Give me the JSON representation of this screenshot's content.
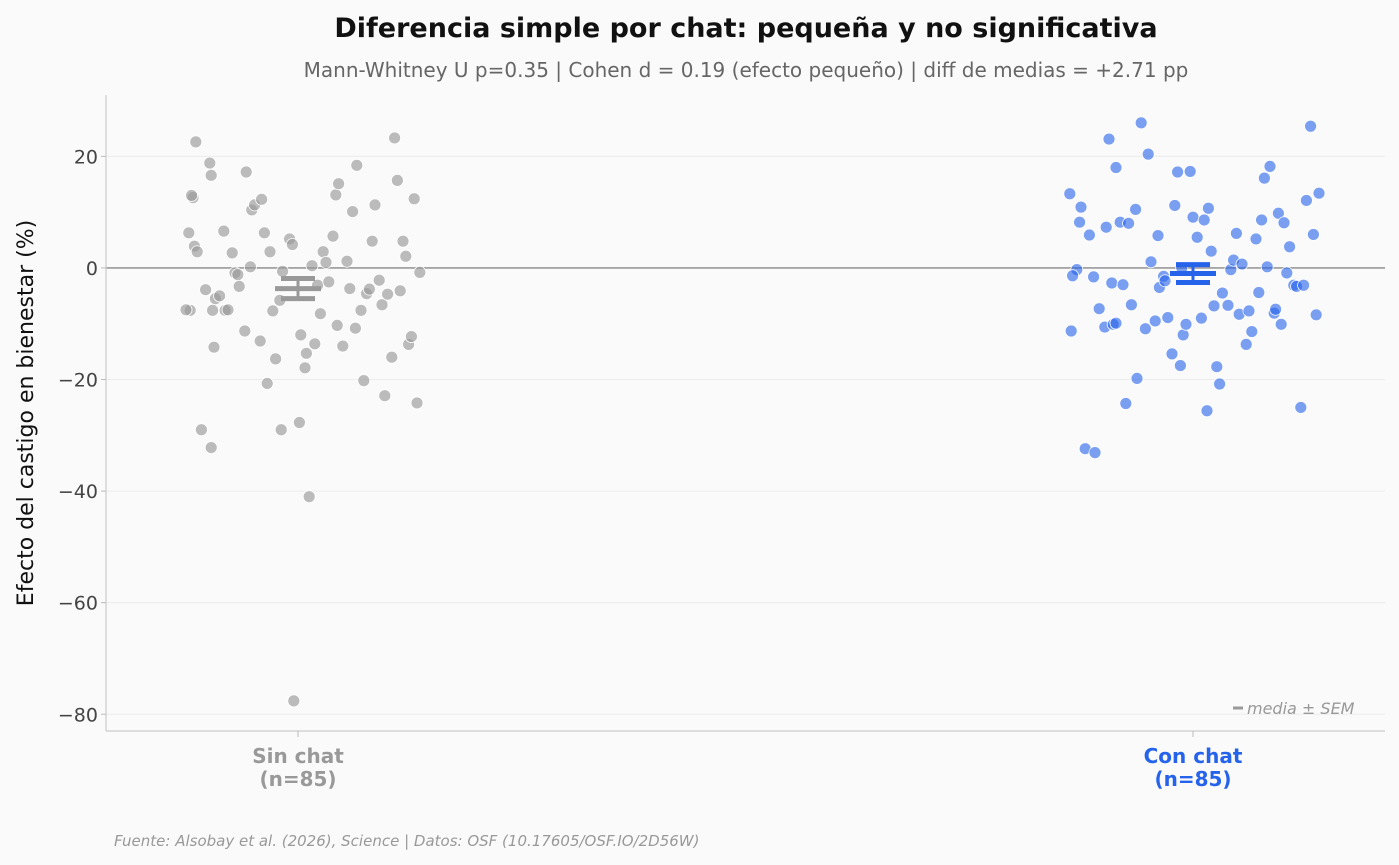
{
  "chart_data": {
    "type": "scatter",
    "title": "Diferencia simple por chat: pequeña y no significativa",
    "subtitle": "Mann-Whitney U p=0.35 | Cohen d = 0.19 (efecto pequeño) | diff de medias = +2.71 pp",
    "ylabel": "Efecto del castigo en bienestar (%)",
    "ylim": [
      -83,
      31
    ],
    "yticks": [
      20,
      0,
      -20,
      -40,
      -60,
      -80
    ],
    "ytick_labels": [
      "20",
      "0",
      "−20",
      "−40",
      "−60",
      "−80"
    ],
    "grid": true,
    "reference_line": 0,
    "legend_label": "media ± SEM",
    "source": "Fuente: Alsobay et al. (2026), Science | Datos: OSF (10.17605/OSF.IO/2D56W)",
    "groups": [
      {
        "name": "Sin chat",
        "n_label": "(n=85)",
        "color": "#999999",
        "mean": -3.7,
        "sem": 1.8,
        "points": [
          [
            -0.75,
            12.6
          ],
          [
            -0.76,
            13.0
          ],
          [
            -0.73,
            22.6
          ],
          [
            -0.63,
            18.8
          ],
          [
            -0.62,
            16.6
          ],
          [
            -0.78,
            6.3
          ],
          [
            -0.74,
            3.9
          ],
          [
            -0.72,
            2.9
          ],
          [
            -0.77,
            -7.6
          ],
          [
            -0.66,
            -3.9
          ],
          [
            -0.59,
            -5.5
          ],
          [
            -0.56,
            -5.0
          ],
          [
            -0.61,
            -7.6
          ],
          [
            -0.52,
            -7.6
          ],
          [
            -0.53,
            6.6
          ],
          [
            -0.47,
            2.7
          ],
          [
            -0.45,
            -0.9
          ],
          [
            -0.43,
            -1.2
          ],
          [
            -0.42,
            -3.3
          ],
          [
            -0.37,
            17.2
          ],
          [
            -0.33,
            10.4
          ],
          [
            -0.31,
            11.3
          ],
          [
            -0.26,
            12.3
          ],
          [
            -0.24,
            6.3
          ],
          [
            -0.2,
            2.9
          ],
          [
            -0.34,
            0.2
          ],
          [
            -0.38,
            -11.3
          ],
          [
            -0.27,
            -13.1
          ],
          [
            -0.6,
            -14.2
          ],
          [
            -0.69,
            -29.0
          ],
          [
            -0.62,
            -32.2
          ],
          [
            -0.22,
            -20.7
          ],
          [
            -0.16,
            -16.3
          ],
          [
            -0.13,
            -5.8
          ],
          [
            -0.11,
            -0.6
          ],
          [
            -0.18,
            -7.7
          ],
          [
            -0.12,
            -29.0
          ],
          [
            -0.06,
            5.2
          ],
          [
            -0.04,
            4.2
          ],
          [
            0.02,
            -12.0
          ],
          [
            0.05,
            -17.9
          ],
          [
            0.06,
            -15.3
          ],
          [
            0.08,
            -41.0
          ],
          [
            0.1,
            0.4
          ],
          [
            0.14,
            -3.1
          ],
          [
            0.16,
            -8.2
          ],
          [
            0.12,
            -13.6
          ],
          [
            0.18,
            2.9
          ],
          [
            0.2,
            1.0
          ],
          [
            0.22,
            -2.5
          ],
          [
            0.25,
            5.7
          ],
          [
            0.27,
            13.1
          ],
          [
            0.29,
            15.1
          ],
          [
            0.28,
            -10.3
          ],
          [
            0.32,
            -14.0
          ],
          [
            0.35,
            1.2
          ],
          [
            0.37,
            -3.7
          ],
          [
            0.39,
            10.1
          ],
          [
            0.41,
            -10.8
          ],
          [
            0.42,
            18.4
          ],
          [
            0.45,
            -7.6
          ],
          [
            0.47,
            -20.2
          ],
          [
            0.49,
            -4.6
          ],
          [
            0.51,
            -3.8
          ],
          [
            0.53,
            4.8
          ],
          [
            0.55,
            11.3
          ],
          [
            0.58,
            -2.2
          ],
          [
            0.6,
            -6.6
          ],
          [
            0.62,
            -22.9
          ],
          [
            0.64,
            -4.7
          ],
          [
            0.67,
            -16.0
          ],
          [
            0.69,
            23.3
          ],
          [
            0.71,
            15.7
          ],
          [
            0.73,
            -4.1
          ],
          [
            0.75,
            4.8
          ],
          [
            0.77,
            2.1
          ],
          [
            0.79,
            -13.7
          ],
          [
            0.81,
            -12.3
          ],
          [
            0.83,
            12.4
          ],
          [
            0.85,
            -24.2
          ],
          [
            0.87,
            -0.8
          ],
          [
            0.01,
            -27.7
          ],
          [
            -0.03,
            -77.6
          ],
          [
            -0.5,
            -7.5
          ],
          [
            -0.8,
            -7.5
          ]
        ]
      },
      {
        "name": "Con chat",
        "n_label": "(n=85)",
        "color": "#2563eb",
        "mean": -1.0,
        "sem": 1.6,
        "points": [
          [
            -0.88,
            13.3
          ],
          [
            -0.8,
            10.9
          ],
          [
            -0.81,
            8.2
          ],
          [
            -0.74,
            5.9
          ],
          [
            -0.83,
            -0.3
          ],
          [
            -0.86,
            -1.4
          ],
          [
            -0.71,
            -1.6
          ],
          [
            -0.87,
            -11.3
          ],
          [
            -0.77,
            -32.4
          ],
          [
            -0.7,
            -33.1
          ],
          [
            -0.67,
            -7.3
          ],
          [
            -0.63,
            -10.6
          ],
          [
            -0.57,
            -10.1
          ],
          [
            -0.55,
            -9.9
          ],
          [
            -0.62,
            7.3
          ],
          [
            -0.6,
            23.1
          ],
          [
            -0.55,
            18.0
          ],
          [
            -0.52,
            8.2
          ],
          [
            -0.46,
            8.0
          ],
          [
            -0.41,
            10.5
          ],
          [
            -0.58,
            -2.7
          ],
          [
            -0.5,
            -3.0
          ],
          [
            -0.44,
            -6.6
          ],
          [
            -0.48,
            -24.3
          ],
          [
            -0.4,
            -19.8
          ],
          [
            -0.37,
            26.0
          ],
          [
            -0.32,
            20.4
          ],
          [
            -0.34,
            -10.9
          ],
          [
            -0.27,
            -9.5
          ],
          [
            -0.3,
            1.1
          ],
          [
            -0.25,
            5.8
          ],
          [
            -0.24,
            -3.5
          ],
          [
            -0.21,
            -1.5
          ],
          [
            -0.2,
            -2.3
          ],
          [
            -0.18,
            -8.9
          ],
          [
            -0.15,
            -15.4
          ],
          [
            -0.13,
            11.2
          ],
          [
            -0.11,
            17.2
          ],
          [
            -0.09,
            -17.5
          ],
          [
            -0.07,
            -12.0
          ],
          [
            -0.05,
            -10.1
          ],
          [
            -0.02,
            17.3
          ],
          [
            0.0,
            9.1
          ],
          [
            0.03,
            5.5
          ],
          [
            0.06,
            -9.0
          ],
          [
            0.08,
            8.6
          ],
          [
            0.11,
            10.7
          ],
          [
            0.13,
            3.0
          ],
          [
            0.15,
            -6.8
          ],
          [
            0.17,
            -17.7
          ],
          [
            0.19,
            -20.8
          ],
          [
            0.21,
            -4.5
          ],
          [
            0.25,
            -6.7
          ],
          [
            0.27,
            -0.3
          ],
          [
            0.29,
            1.4
          ],
          [
            0.31,
            6.2
          ],
          [
            0.33,
            -8.3
          ],
          [
            0.35,
            0.7
          ],
          [
            0.38,
            -13.7
          ],
          [
            0.4,
            -7.7
          ],
          [
            0.42,
            -11.4
          ],
          [
            0.45,
            5.2
          ],
          [
            0.47,
            -4.4
          ],
          [
            0.49,
            8.6
          ],
          [
            0.51,
            16.1
          ],
          [
            0.53,
            0.2
          ],
          [
            0.55,
            18.2
          ],
          [
            0.58,
            -8.1
          ],
          [
            0.59,
            -7.4
          ],
          [
            0.61,
            9.8
          ],
          [
            0.63,
            -10.1
          ],
          [
            0.65,
            8.1
          ],
          [
            0.67,
            -0.9
          ],
          [
            0.69,
            3.8
          ],
          [
            0.72,
            -3.1
          ],
          [
            0.74,
            -3.3
          ],
          [
            0.77,
            -25.0
          ],
          [
            0.79,
            -3.1
          ],
          [
            0.81,
            12.1
          ],
          [
            0.84,
            25.4
          ],
          [
            0.86,
            6.0
          ],
          [
            0.88,
            -8.4
          ],
          [
            0.9,
            13.4
          ],
          [
            0.1,
            -25.6
          ],
          [
            -0.08,
            0.0
          ]
        ]
      }
    ]
  }
}
